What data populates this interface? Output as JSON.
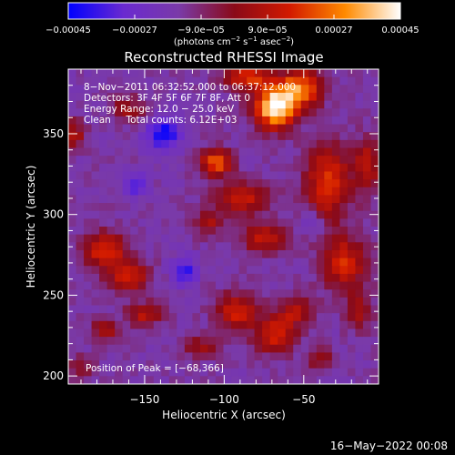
{
  "chart_data": {
    "type": "heatmap",
    "title": "Reconstructed RHESSI Image",
    "xlabel": "Heliocentric X (arcsec)",
    "ylabel": "Heliocentric Y (arcsec)",
    "xlim": [
      -198,
      -3
    ],
    "ylim": [
      195,
      390
    ],
    "xticks": [
      -150,
      -100,
      -50
    ],
    "xtick_labels": [
      "−150",
      "−100",
      "−50"
    ],
    "yticks": [
      200,
      250,
      300,
      350
    ],
    "ytick_labels": [
      "200",
      "250",
      "300",
      "350"
    ],
    "colorbar": {
      "range": [
        -0.00045,
        0.00045
      ],
      "ticks": [
        -0.00045,
        -0.00027,
        -9e-05,
        9e-05,
        0.00027,
        0.00045
      ],
      "tick_labels": [
        "−0.00045",
        "−0.00027",
        "−9.0e−05",
        "9.0e−05",
        "0.00027",
        "0.00045"
      ],
      "unit_parts": {
        "pre": "(photons cm",
        "e1": "−2",
        "mid": " s",
        "e2": "−1",
        "mid2": " asec",
        "e3": "−2",
        "post": ")"
      },
      "colormap": [
        "#0000ff",
        "#6a2ad0",
        "#7a3aa8",
        "#8a0a18",
        "#d21a00",
        "#ff8a00",
        "#ffffff"
      ]
    },
    "info": [
      "8−Nov−2011 06:32:52.000 to 06:37:12.000",
      "Detectors: 3F 4F 5F 6F 7F 8F, Att 0",
      "Energy Range: 12.0 − 25.0 keV",
      "Clean     Total counts: 6.12E+03"
    ],
    "peak_label": "Position of Peak = [−68,366]",
    "peak": {
      "x": -68,
      "y": 366
    },
    "sources": [
      {
        "x": -68,
        "y": 366,
        "sx": 9,
        "sy": 9,
        "amp": 1.0
      },
      {
        "x": -52,
        "y": 378,
        "sx": 10,
        "sy": 8,
        "amp": 0.7
      },
      {
        "x": -85,
        "y": 385,
        "sx": 10,
        "sy": 6,
        "amp": 0.55
      },
      {
        "x": -105,
        "y": 332,
        "sx": 7,
        "sy": 6,
        "amp": 0.65
      },
      {
        "x": -88,
        "y": 310,
        "sx": 12,
        "sy": 7,
        "amp": 0.45
      },
      {
        "x": -35,
        "y": 320,
        "sx": 10,
        "sy": 16,
        "amp": 0.55
      },
      {
        "x": -10,
        "y": 330,
        "sx": 6,
        "sy": 12,
        "amp": 0.4
      },
      {
        "x": -25,
        "y": 270,
        "sx": 10,
        "sy": 12,
        "amp": 0.5
      },
      {
        "x": -75,
        "y": 285,
        "sx": 10,
        "sy": 6,
        "amp": 0.45
      },
      {
        "x": -110,
        "y": 295,
        "sx": 6,
        "sy": 6,
        "amp": 0.35
      },
      {
        "x": -175,
        "y": 278,
        "sx": 9,
        "sy": 8,
        "amp": 0.55
      },
      {
        "x": -160,
        "y": 262,
        "sx": 9,
        "sy": 7,
        "amp": 0.5
      },
      {
        "x": -150,
        "y": 238,
        "sx": 8,
        "sy": 5,
        "amp": 0.4
      },
      {
        "x": -175,
        "y": 228,
        "sx": 6,
        "sy": 5,
        "amp": 0.35
      },
      {
        "x": -92,
        "y": 240,
        "sx": 9,
        "sy": 8,
        "amp": 0.5
      },
      {
        "x": -68,
        "y": 225,
        "sx": 9,
        "sy": 8,
        "amp": 0.5
      },
      {
        "x": -55,
        "y": 240,
        "sx": 8,
        "sy": 6,
        "amp": 0.4
      },
      {
        "x": -115,
        "y": 218,
        "sx": 8,
        "sy": 5,
        "amp": 0.3
      },
      {
        "x": -195,
        "y": 350,
        "sx": 5,
        "sy": 6,
        "amp": 0.4
      },
      {
        "x": -160,
        "y": 365,
        "sx": 8,
        "sy": 6,
        "amp": 0.3
      },
      {
        "x": -15,
        "y": 240,
        "sx": 6,
        "sy": 8,
        "amp": 0.35
      },
      {
        "x": -40,
        "y": 210,
        "sx": 6,
        "sy": 5,
        "amp": 0.3
      },
      {
        "x": -190,
        "y": 205,
        "sx": 5,
        "sy": 5,
        "amp": 0.3
      }
    ],
    "negative_regions": [
      {
        "x": -138,
        "y": 350,
        "sx": 8,
        "sy": 8,
        "amp": 0.45
      },
      {
        "x": -125,
        "y": 265,
        "sx": 6,
        "sy": 6,
        "amp": 0.4
      },
      {
        "x": -155,
        "y": 318,
        "sx": 5,
        "sy": 5,
        "amp": 0.3
      },
      {
        "x": -45,
        "y": 295,
        "sx": 5,
        "sy": 5,
        "amp": 0.25
      }
    ]
  },
  "footer": {
    "timestamp": "16−May−2022 00:08"
  }
}
